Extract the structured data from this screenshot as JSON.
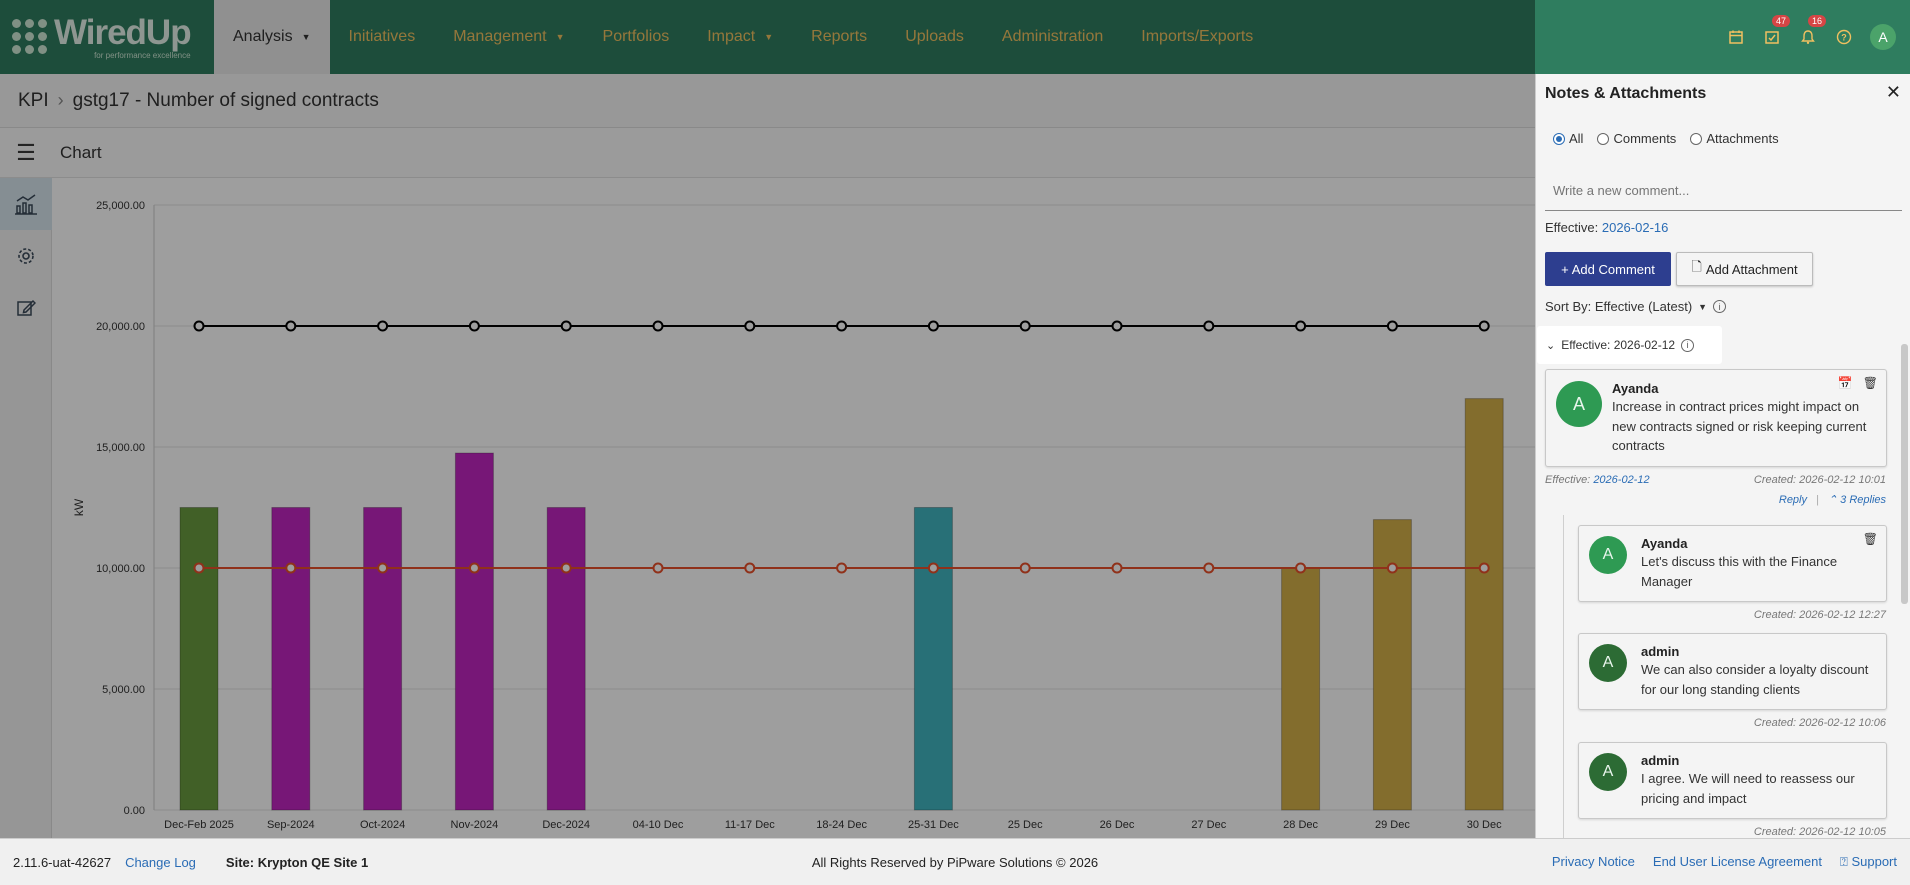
{
  "nav": {
    "brand_name": "WiredUp",
    "brand_tagline": "for performance excellence",
    "items": [
      {
        "label": "Analysis",
        "dropdown": true,
        "active": true
      },
      {
        "label": "Initiatives",
        "dropdown": false
      },
      {
        "label": "Management",
        "dropdown": true
      },
      {
        "label": "Portfolios",
        "dropdown": false
      },
      {
        "label": "Impact",
        "dropdown": true
      },
      {
        "label": "Reports",
        "dropdown": false
      },
      {
        "label": "Uploads",
        "dropdown": false
      },
      {
        "label": "Administration",
        "dropdown": false
      },
      {
        "label": "Imports/Exports",
        "dropdown": false
      }
    ],
    "icons": [
      {
        "name": "calendar-icon",
        "badge": ""
      },
      {
        "name": "tasks-icon",
        "badge": "47"
      },
      {
        "name": "bell-icon",
        "badge": "16"
      },
      {
        "name": "help-icon",
        "badge": ""
      }
    ],
    "user_initial": "A",
    "bg_color": "#2f7d5f",
    "accent_color": "#f0c060"
  },
  "breadcrumb": {
    "root": "KPI",
    "current": "gstg17 - Number of signed contracts"
  },
  "subheader": {
    "title": "Chart"
  },
  "chart_data": {
    "type": "bar",
    "ylabel": "kW",
    "ylim": [
      0,
      25000
    ],
    "yticks": [
      "0.00",
      "5,000.00",
      "10,000.00",
      "15,000.00",
      "20,000.00",
      "25,000.00"
    ],
    "categories": [
      "Dec-Feb 2025",
      "Sep-2024",
      "Oct-2024",
      "Nov-2024",
      "Dec-2024",
      "04-10 Dec",
      "11-17 Dec",
      "18-24 Dec",
      "25-31 Dec",
      "25 Dec",
      "26 Dec",
      "27 Dec",
      "28 Dec",
      "29 Dec",
      "30 Dec"
    ],
    "series": [
      {
        "kind": "bar",
        "values": [
          12500,
          12500,
          12500,
          14750,
          12500,
          null,
          null,
          null,
          12500,
          null,
          null,
          null,
          10000,
          12000,
          17000
        ],
        "colors": [
          "#6a9b3f",
          "#c026c0",
          "#c026c0",
          "#c026c0",
          "#c026c0",
          null,
          null,
          null,
          "#42b5c0",
          null,
          null,
          null,
          "#d4b04a",
          "#d4b04a",
          "#d4b04a"
        ]
      },
      {
        "kind": "line",
        "color": "#000000",
        "values": [
          20000,
          20000,
          20000,
          20000,
          20000,
          20000,
          20000,
          20000,
          20000,
          20000,
          20000,
          20000,
          20000,
          20000,
          20000
        ]
      },
      {
        "kind": "line",
        "color": "#e8502a",
        "values": [
          10000,
          10000,
          10000,
          10000,
          10000,
          10000,
          10000,
          10000,
          10000,
          10000,
          10000,
          10000,
          10000,
          10000,
          10000
        ]
      }
    ],
    "grid": true
  },
  "panel": {
    "title": "Notes & Attachments",
    "filters": [
      {
        "label": "All",
        "checked": true
      },
      {
        "label": "Comments",
        "checked": false
      },
      {
        "label": "Attachments",
        "checked": false
      }
    ],
    "comment_placeholder": "Write a new comment...",
    "effective_label": "Effective:",
    "effective_value": "2026-02-16",
    "add_comment_label": "Add Comment",
    "add_attachment_label": "Add Attachment",
    "sort_label": "Sort By: Effective (Latest)",
    "group_label": "Effective: 2026-02-12",
    "main_comment": {
      "author": "Ayanda",
      "initial": "A",
      "text": "Increase in contract prices might impact on new contracts signed or risk keeping current contracts",
      "effective_label": "Effective:",
      "effective_value": "2026-02-12",
      "created": "Created: 2026-02-12 10:01",
      "reply_label": "Reply",
      "replies_label": "3 Replies"
    },
    "replies": [
      {
        "author": "Ayanda",
        "initial": "A",
        "text": "Let's discuss this with the Finance Manager",
        "created": "Created: 2026-02-12 12:27"
      },
      {
        "author": "admin",
        "initial": "A",
        "text": "We can also consider a loyalty discount for our long standing clients",
        "created": "Created: 2026-02-12 10:06"
      },
      {
        "author": "admin",
        "initial": "A",
        "text": "I agree. We will need to reassess our pricing and impact",
        "created": "Created: 2026-02-12 10:05"
      }
    ]
  },
  "footer": {
    "version": "2.11.6-uat-42627",
    "changelog": "Change Log",
    "site": "Site: Krypton QE Site 1",
    "copyright": "All Rights Reserved by PiPware Solutions © 2026",
    "privacy": "Privacy Notice",
    "eula": "End User License Agreement",
    "support": "Support"
  }
}
